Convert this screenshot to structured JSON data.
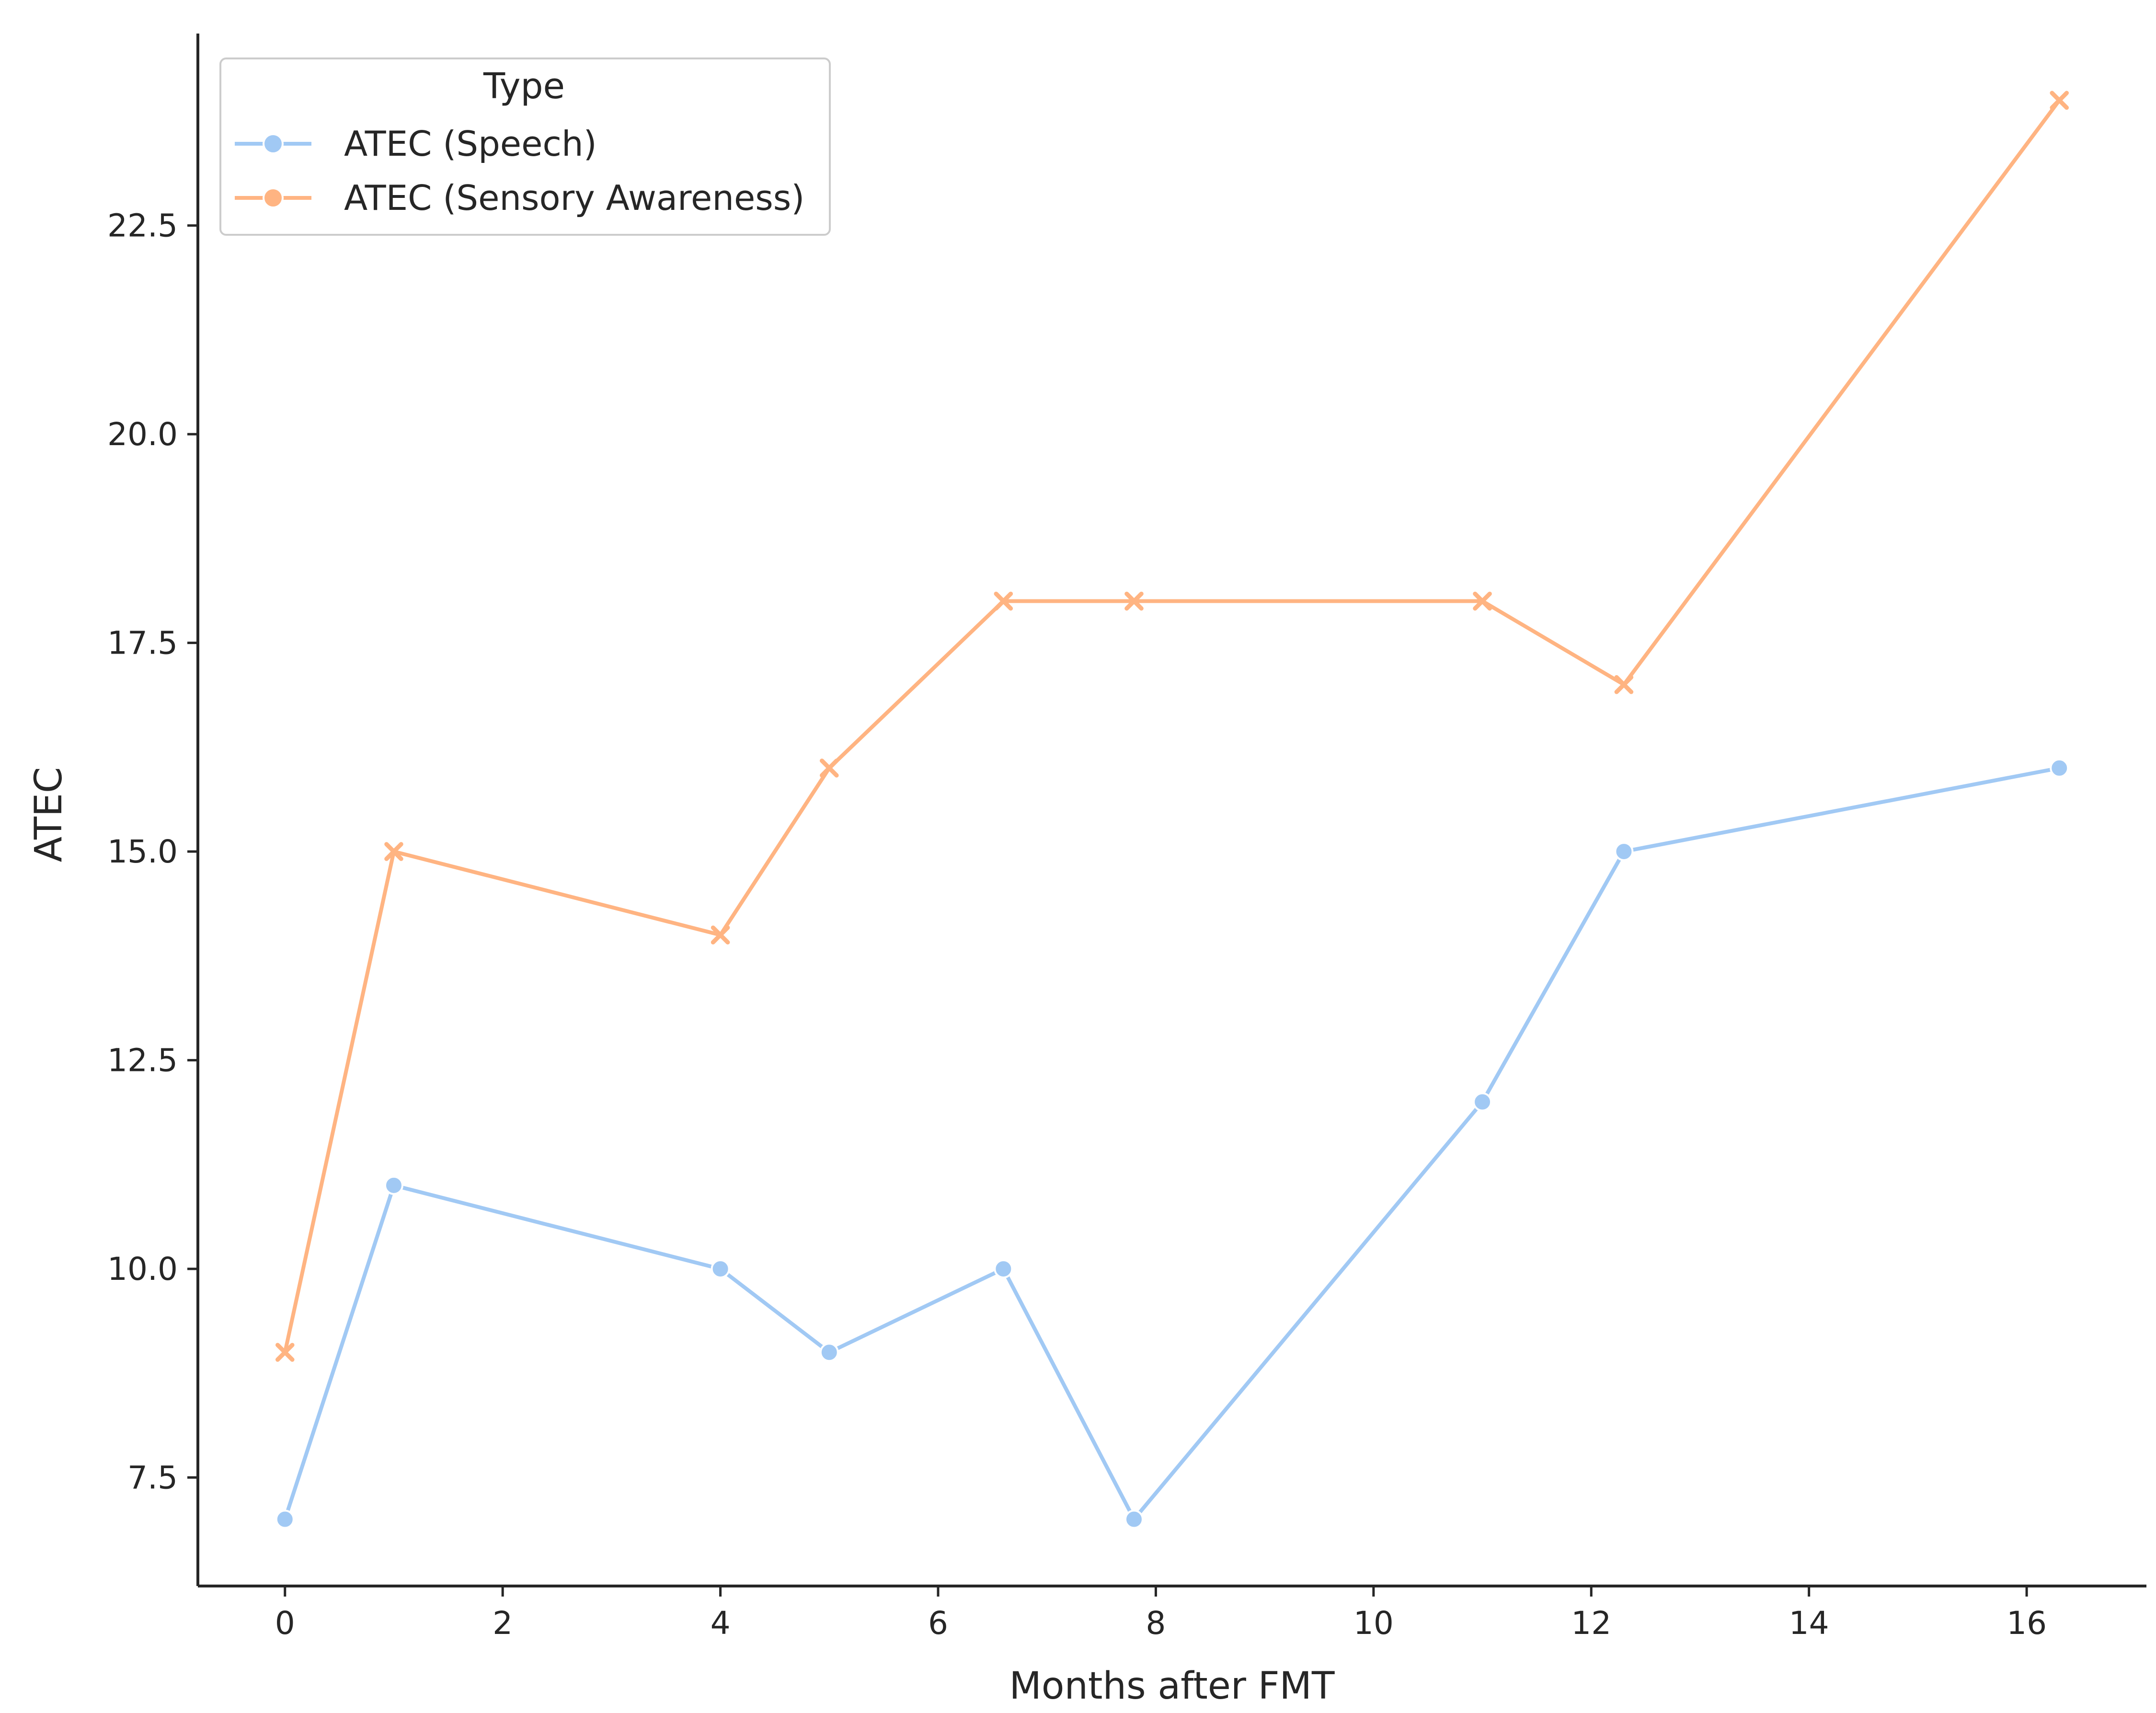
{
  "chart_data": {
    "type": "line",
    "title": "",
    "xlabel": "Months after FMT",
    "ylabel": "ATEC",
    "xlim": [
      -0.8,
      17.1
    ],
    "ylim": [
      6.2,
      24.8
    ],
    "xticks": [
      0,
      2,
      4,
      6,
      8,
      10,
      12,
      14,
      16
    ],
    "xtick_labels": [
      "0",
      "2",
      "4",
      "6",
      "8",
      "10",
      "12",
      "14",
      "16"
    ],
    "yticks": [
      7.5,
      10.0,
      12.5,
      15.0,
      17.5,
      20.0,
      22.5
    ],
    "ytick_labels": [
      "7.5",
      "10.0",
      "12.5",
      "15.0",
      "17.5",
      "20.0",
      "22.5"
    ],
    "grid": false,
    "legend": {
      "title": "Type",
      "placement": "upper-left"
    },
    "series": [
      {
        "name": "ATEC (Speech)",
        "color": "#a1c9f4",
        "marker": "circle",
        "x": [
          0,
          1,
          4,
          5,
          6.6,
          7.8,
          11,
          12.3,
          16.3
        ],
        "y": [
          7,
          11,
          10,
          9,
          10,
          7,
          12,
          15,
          16
        ]
      },
      {
        "name": "ATEC (Sensory Awareness)",
        "color": "#ffb482",
        "marker": "x",
        "x": [
          0,
          1,
          4,
          5,
          6.6,
          7.8,
          11,
          12.3,
          16.3
        ],
        "y": [
          9,
          15,
          14,
          16,
          18,
          18,
          18,
          17,
          24
        ]
      }
    ]
  }
}
